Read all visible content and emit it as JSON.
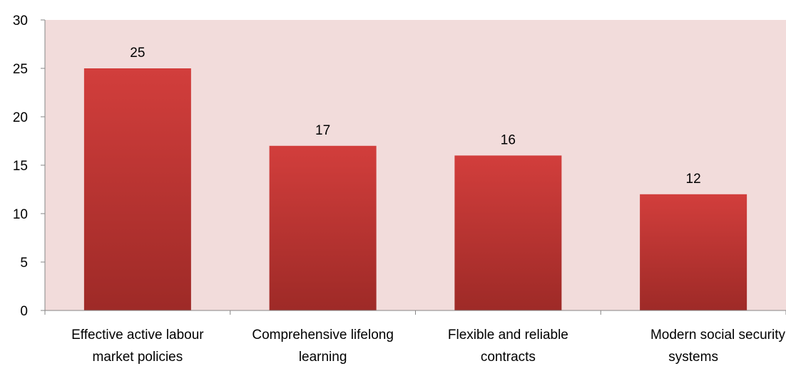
{
  "chart_data": {
    "type": "bar",
    "title": "",
    "xlabel": "",
    "ylabel": "",
    "categories": [
      [
        "Effective active labour",
        "market policies"
      ],
      [
        "Comprehensive lifelong",
        "learning"
      ],
      [
        "Flexible and reliable",
        "contracts"
      ],
      [
        "Modern social security",
        "systems"
      ]
    ],
    "values": [
      25,
      17,
      16,
      12
    ],
    "data_labels": [
      "25",
      "17",
      "16",
      "12"
    ],
    "ylim": [
      0,
      30
    ],
    "yticks": [
      0,
      5,
      10,
      15,
      20,
      25,
      30
    ],
    "ytick_labels": [
      "0",
      "5",
      "10",
      "15",
      "20",
      "25",
      "30"
    ],
    "grid": false,
    "legend": "none",
    "colors": {
      "plot_background": "#F2DCDB",
      "bar_top": "#D23E3C",
      "bar_bottom": "#9E2A27",
      "axis": "#868686"
    }
  }
}
